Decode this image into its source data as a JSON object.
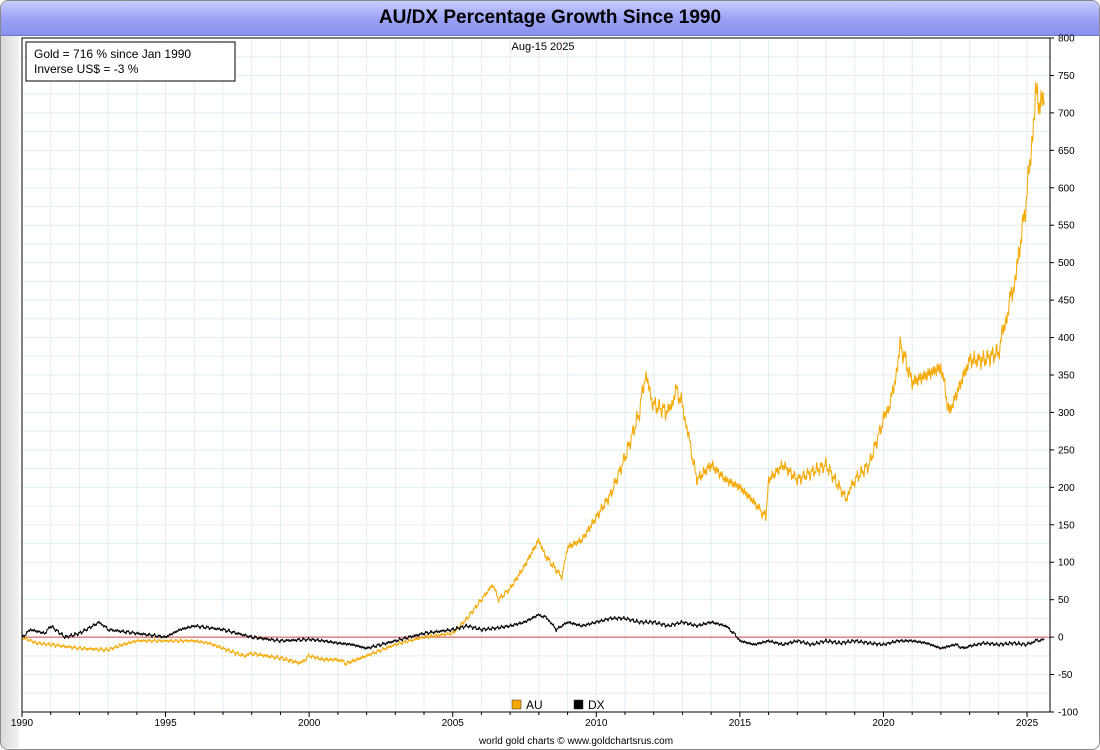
{
  "chart_data": {
    "type": "line",
    "title": "AU/DX Percentage Growth Since 1990",
    "date_label": "Aug-15  2025",
    "info_box": [
      "Gold = 716 % since Jan 1990",
      "Inverse US$ = -3 %"
    ],
    "footer": "world gold charts © www.goldchartsrus.com",
    "x_range": [
      1990,
      2025.8
    ],
    "ylim": [
      -100,
      800
    ],
    "x_ticks": [
      "1990",
      "1995",
      "2000",
      "2005",
      "2010",
      "2015",
      "2020",
      "2025"
    ],
    "y_ticks": [
      "800",
      "750",
      "700",
      "650",
      "600",
      "550",
      "500",
      "450",
      "400",
      "350",
      "300",
      "250",
      "200",
      "150",
      "100",
      "50",
      "0",
      "-50",
      "-100"
    ],
    "grid": true,
    "legend_position": "bottom-center",
    "series": [
      {
        "name": "AU",
        "color": "#f5a800",
        "x": [
          1990,
          1990.5,
          1991,
          1992,
          1993,
          1993.5,
          1994,
          1995,
          1996,
          1996.5,
          1997,
          1997.7,
          1998,
          1999,
          1999.7,
          2000,
          2000.5,
          2001,
          2001.3,
          2002,
          2003,
          2004,
          2005,
          2005.5,
          2006,
          2006.4,
          2006.6,
          2007,
          2007.5,
          2008,
          2008.2,
          2008.8,
          2009,
          2009.5,
          2010,
          2010.5,
          2011,
          2011.5,
          2011.7,
          2012,
          2012.5,
          2012.8,
          2013,
          2013.3,
          2013.5,
          2014,
          2014.5,
          2015,
          2015.5,
          2015.9,
          2016,
          2016.5,
          2017,
          2017.5,
          2018,
          2018.7,
          2019,
          2019.5,
          2020,
          2020.3,
          2020.6,
          2021,
          2021.5,
          2022,
          2022.3,
          2022.8,
          2023,
          2023.5,
          2024,
          2024.3,
          2024.6,
          2025,
          2025.3,
          2025.6
        ],
        "y": [
          0,
          -8,
          -10,
          -15,
          -17,
          -10,
          -5,
          -5,
          -5,
          -8,
          -15,
          -25,
          -22,
          -28,
          -35,
          -25,
          -30,
          -30,
          -35,
          -25,
          -10,
          0,
          5,
          25,
          50,
          70,
          50,
          65,
          95,
          130,
          110,
          80,
          120,
          130,
          160,
          190,
          240,
          300,
          350,
          310,
          300,
          330,
          310,
          250,
          210,
          230,
          210,
          200,
          180,
          160,
          210,
          230,
          210,
          220,
          230,
          185,
          210,
          230,
          290,
          320,
          390,
          340,
          350,
          360,
          300,
          350,
          370,
          370,
          380,
          430,
          480,
          590,
          720,
          716
        ]
      },
      {
        "name": "DX",
        "color": "#000000",
        "x": [
          1990,
          1990.3,
          1990.8,
          1991,
          1991.5,
          1992,
          1992.7,
          1993,
          1994,
          1995,
          1995.5,
          1996,
          1997,
          1998,
          1999,
          2000,
          2000.5,
          2001,
          2001.5,
          2002,
          2003,
          2004,
          2005,
          2005.5,
          2006,
          2006.5,
          2007,
          2007.5,
          2008,
          2008.3,
          2008.6,
          2009,
          2009.5,
          2010,
          2010.5,
          2011,
          2011.5,
          2012,
          2012.5,
          2013,
          2013.5,
          2014,
          2014.5,
          2014.8,
          2015,
          2015.5,
          2016,
          2016.5,
          2017,
          2017.5,
          2018,
          2018.5,
          2019,
          2019.5,
          2020,
          2020.5,
          2021,
          2021.5,
          2022,
          2022.5,
          2022.8,
          2023,
          2023.5,
          2024,
          2024.5,
          2025,
          2025.3,
          2025.6
        ],
        "y": [
          0,
          10,
          5,
          15,
          0,
          5,
          20,
          10,
          5,
          0,
          10,
          15,
          10,
          0,
          -5,
          -3,
          -5,
          -8,
          -10,
          -15,
          -5,
          5,
          10,
          15,
          10,
          12,
          15,
          20,
          30,
          25,
          10,
          20,
          15,
          20,
          25,
          25,
          20,
          20,
          15,
          20,
          15,
          20,
          15,
          5,
          -5,
          -10,
          -5,
          -10,
          -5,
          -10,
          -5,
          -8,
          -5,
          -8,
          -10,
          -5,
          -5,
          -8,
          -15,
          -10,
          -15,
          -12,
          -8,
          -10,
          -8,
          -10,
          -5,
          -3
        ]
      }
    ]
  }
}
